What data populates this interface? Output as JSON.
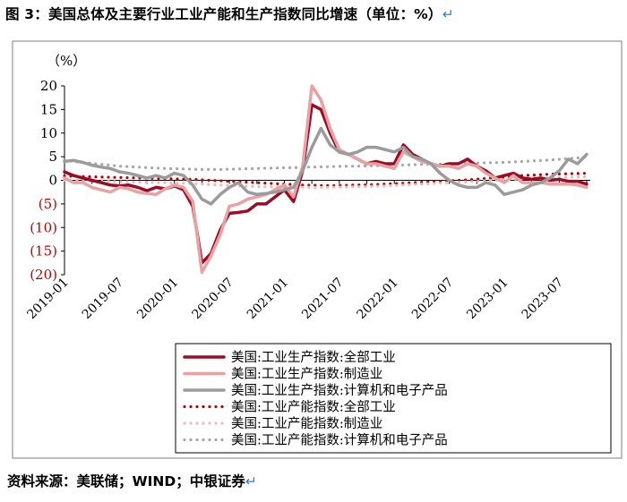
{
  "title": "图 3：美国总体及主要行业工业产能和生产指数同比增速（单位：%）",
  "source_note": "资料来源：美联储；WIND；中银证券",
  "return_mark": "↵",
  "chart_data": {
    "type": "line",
    "title": "美国总体及主要行业工业产能和生产指数同比增速",
    "unit_label": "（%）",
    "ylim": [
      -20,
      20
    ],
    "yticks": [
      20,
      15,
      10,
      5,
      0,
      -5,
      -10,
      -15,
      -20
    ],
    "ytick_labels": [
      "20",
      "15",
      "10",
      "5",
      "0",
      "(5)",
      "(10)",
      "(15)",
      "(20)"
    ],
    "negative_tick_color": "#c00000",
    "x_start": "2019-01",
    "x_count": 58,
    "xtick_labels": [
      "2019-01",
      "2019-07",
      "2020-01",
      "2020-07",
      "2021-01",
      "2021-07",
      "2022-01",
      "2022-07",
      "2023-01",
      "2023-07"
    ],
    "xtick_indices": [
      0,
      6,
      12,
      18,
      24,
      30,
      36,
      42,
      48,
      54
    ],
    "series": [
      {
        "name": "美国:工业生产指数:全部工业",
        "color": "#9a0c27",
        "style": "solid",
        "width": 3.5,
        "values": [
          1.8,
          1.0,
          0.5,
          0.0,
          -0.5,
          -1.0,
          -1.2,
          -1.0,
          -1.5,
          -2.2,
          -1.5,
          -1.8,
          -1.2,
          -2.0,
          -5.5,
          -17.5,
          -15.5,
          -10.5,
          -7.0,
          -6.8,
          -6.5,
          -5.0,
          -5.0,
          -3.5,
          -2.0,
          -4.5,
          2.0,
          16.0,
          15.0,
          10.0,
          6.0,
          5.5,
          4.5,
          3.5,
          4.0,
          3.5,
          3.5,
          7.5,
          5.5,
          4.5,
          3.5,
          3.0,
          3.5,
          3.5,
          4.5,
          3.0,
          2.0,
          0.5,
          1.0,
          1.5,
          0.5,
          0.2,
          0.5,
          0.0,
          0.2,
          -0.2,
          -0.2,
          -0.8
        ]
      },
      {
        "name": "美国:工业生产指数:制造业",
        "color": "#e8a2a4",
        "style": "solid",
        "width": 3.5,
        "values": [
          0.5,
          -0.5,
          -0.5,
          -1.5,
          -2.0,
          -2.5,
          -1.5,
          -1.8,
          -2.5,
          -2.8,
          -3.0,
          -1.8,
          -1.0,
          -1.5,
          -4.5,
          -19.5,
          -16.0,
          -11.5,
          -5.5,
          -5.0,
          -4.0,
          -3.5,
          -3.0,
          -2.0,
          -1.0,
          -3.5,
          3.0,
          20.0,
          17.0,
          11.0,
          6.5,
          5.5,
          4.5,
          3.5,
          3.5,
          3.0,
          2.5,
          6.0,
          5.0,
          4.0,
          3.5,
          3.0,
          3.0,
          2.5,
          3.5,
          3.0,
          1.5,
          0.5,
          -0.5,
          1.0,
          -0.5,
          -0.5,
          -0.5,
          -0.8,
          -0.8,
          -0.8,
          -1.0,
          -1.5
        ]
      },
      {
        "name": "美国:工业生产指数:计算机和电子产品",
        "color": "#9b9b9b",
        "style": "solid",
        "width": 3.5,
        "values": [
          4.0,
          4.2,
          3.8,
          3.2,
          2.8,
          2.5,
          1.8,
          1.5,
          1.0,
          0.5,
          1.0,
          0.5,
          1.5,
          1.0,
          -1.0,
          -4.0,
          -5.0,
          -3.0,
          -1.5,
          -0.5,
          -2.5,
          -3.0,
          -2.8,
          -2.5,
          -2.0,
          -1.5,
          2.0,
          7.0,
          11.0,
          7.5,
          6.0,
          5.5,
          6.0,
          7.0,
          7.0,
          6.5,
          6.0,
          7.0,
          5.0,
          4.5,
          3.5,
          1.5,
          0.0,
          -1.0,
          -1.5,
          -1.5,
          -0.5,
          -1.0,
          -3.0,
          -2.5,
          -2.0,
          -1.0,
          -0.5,
          0.5,
          2.0,
          4.5,
          3.5,
          5.5
        ]
      },
      {
        "name": "美国:工业产能指数:全部工业",
        "color": "#c00000",
        "style": "dotted",
        "width": 3.2,
        "values": [
          0.9,
          0.85,
          0.8,
          0.75,
          0.7,
          0.65,
          0.6,
          0.55,
          0.5,
          0.45,
          0.4,
          0.35,
          0.3,
          0.25,
          0.2,
          0.1,
          0.0,
          -0.1,
          -0.2,
          -0.3,
          -0.4,
          -0.5,
          -0.6,
          -0.7,
          -0.8,
          -0.9,
          -1.0,
          -1.05,
          -1.1,
          -1.1,
          -1.1,
          -1.05,
          -1.0,
          -0.95,
          -0.9,
          -0.8,
          -0.7,
          -0.6,
          -0.5,
          -0.4,
          -0.3,
          -0.2,
          -0.1,
          0.0,
          0.1,
          0.25,
          0.4,
          0.55,
          0.7,
          0.85,
          1.0,
          1.1,
          1.2,
          1.3,
          1.35,
          1.4,
          1.45,
          1.5
        ]
      },
      {
        "name": "美国:工业产能指数:制造业",
        "color": "#f0b7b8",
        "style": "dotted",
        "width": 3.2,
        "values": [
          0.0,
          0.0,
          -0.1,
          -0.1,
          -0.2,
          -0.2,
          -0.3,
          -0.3,
          -0.4,
          -0.4,
          -0.5,
          -0.5,
          -0.6,
          -0.6,
          -0.7,
          -0.8,
          -0.9,
          -1.0,
          -1.1,
          -1.2,
          -1.25,
          -1.3,
          -1.35,
          -1.4,
          -1.45,
          -1.5,
          -1.5,
          -1.5,
          -1.5,
          -1.5,
          -1.45,
          -1.4,
          -1.35,
          -1.3,
          -1.25,
          -1.2,
          -1.1,
          -1.0,
          -0.9,
          -0.8,
          -0.7,
          -0.6,
          -0.5,
          -0.4,
          -0.3,
          -0.2,
          -0.1,
          0.0,
          0.1,
          0.2,
          0.3,
          0.4,
          0.5,
          0.55,
          0.6,
          0.65,
          0.7,
          0.75
        ]
      },
      {
        "name": "美国:工业产能指数:计算机和电子产品",
        "color": "#a6a6a6",
        "style": "dotted",
        "width": 3.2,
        "values": [
          4.2,
          4.0,
          3.8,
          3.6,
          3.4,
          3.2,
          3.0,
          2.9,
          2.8,
          2.7,
          2.6,
          2.5,
          2.45,
          2.4,
          2.35,
          2.3,
          2.3,
          2.3,
          2.35,
          2.4,
          2.45,
          2.5,
          2.55,
          2.6,
          2.65,
          2.7,
          2.75,
          2.8,
          2.85,
          2.9,
          2.95,
          3.0,
          3.0,
          3.05,
          3.1,
          3.15,
          3.2,
          3.25,
          3.3,
          3.35,
          3.4,
          3.45,
          3.5,
          3.55,
          3.6,
          3.65,
          3.7,
          3.75,
          3.8,
          3.9,
          4.0,
          4.1,
          4.2,
          4.3,
          4.45,
          4.6,
          4.75,
          4.9
        ]
      }
    ]
  }
}
